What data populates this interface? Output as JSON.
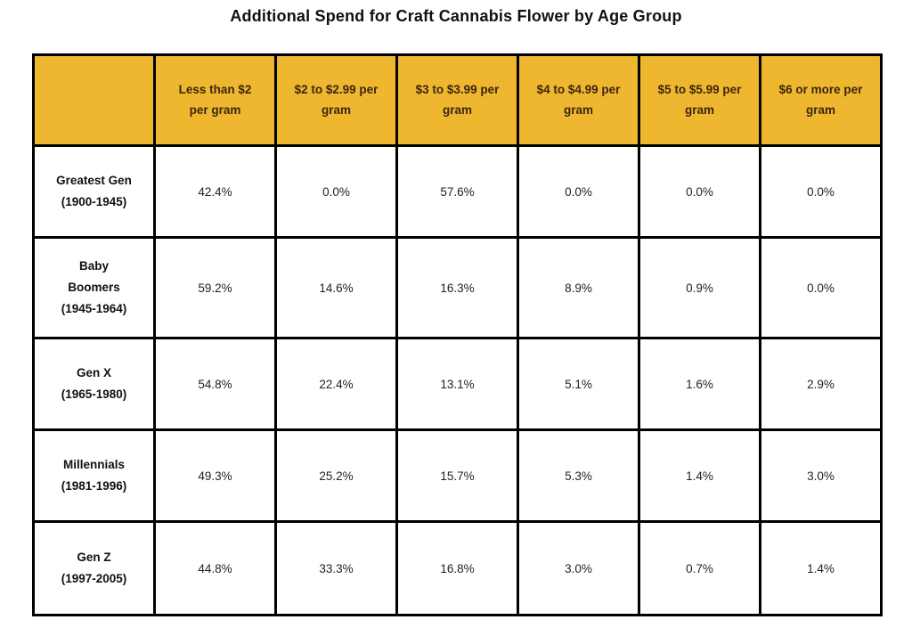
{
  "title": "Additional Spend for Craft Cannabis Flower by Age Group",
  "colors": {
    "header_background": "#EFB62F",
    "header_text": "#3A2710",
    "border": "#000000",
    "cell_text": "#222222",
    "page_background": "#FFFFFF"
  },
  "chart_data": {
    "type": "table",
    "title": "Additional Spend for Craft Cannabis Flower by Age Group",
    "corner_label": "",
    "columns": [
      "Less than $2 per gram",
      "$2 to $2.99 per gram",
      "$3 to $3.99 per gram",
      "$4 to $4.99 per gram",
      "$5 to $5.99 per gram",
      "$6 or more per gram"
    ],
    "column_lines": [
      [
        "Less than $2",
        "per gram"
      ],
      [
        "$2 to $2.99 per",
        "gram"
      ],
      [
        "$3 to $3.99 per",
        "gram"
      ],
      [
        "$4 to $4.99 per",
        "gram"
      ],
      [
        "$5 to $5.99 per",
        "gram"
      ],
      [
        "$6 or more per",
        "gram"
      ]
    ],
    "rows": [
      {
        "label": "Greatest Gen (1900-1945)",
        "label_lines": [
          "Greatest Gen",
          "(1900-1945)"
        ],
        "values": [
          "42.4%",
          "0.0%",
          "57.6%",
          "0.0%",
          "0.0%",
          "0.0%"
        ]
      },
      {
        "label": "Baby Boomers (1945-1964)",
        "label_lines": [
          "Baby",
          "Boomers",
          "(1945-1964)"
        ],
        "values": [
          "59.2%",
          "14.6%",
          "16.3%",
          "8.9%",
          "0.9%",
          "0.0%"
        ]
      },
      {
        "label": "Gen X (1965-1980)",
        "label_lines": [
          "Gen X",
          "(1965-1980)"
        ],
        "values": [
          "54.8%",
          "22.4%",
          "13.1%",
          "5.1%",
          "1.6%",
          "2.9%"
        ]
      },
      {
        "label": "Millennials (1981-1996)",
        "label_lines": [
          "Millennials",
          "(1981-1996)"
        ],
        "values": [
          "49.3%",
          "25.2%",
          "15.7%",
          "5.3%",
          "1.4%",
          "3.0%"
        ]
      },
      {
        "label": "Gen Z (1997-2005)",
        "label_lines": [
          "Gen Z",
          "(1997-2005)"
        ],
        "values": [
          "44.8%",
          "33.3%",
          "16.8%",
          "3.0%",
          "0.7%",
          "1.4%"
        ]
      }
    ]
  }
}
